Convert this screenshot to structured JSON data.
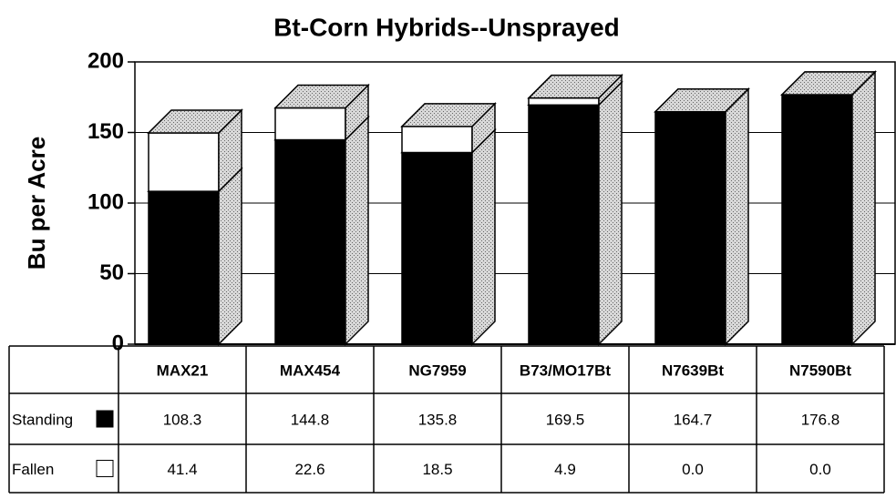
{
  "chart_data": {
    "type": "stacked_bar_3d",
    "title": "Bt-Corn Hybrids--Unsprayed",
    "y_label": "Bu per Acre",
    "categories": [
      "MAX21",
      "MAX454",
      "NG7959",
      "B73/MO17Bt",
      "N7639Bt",
      "N7590Bt"
    ],
    "series": [
      {
        "name": "Standing",
        "color": "#000000",
        "values": [
          108.3,
          144.8,
          135.8,
          169.5,
          164.7,
          176.8
        ],
        "value_labels": [
          "108.3",
          "144.8",
          "135.8",
          "169.5",
          "164.7",
          "176.8"
        ]
      },
      {
        "name": "Fallen",
        "color": "#ffffff",
        "values": [
          41.4,
          22.6,
          18.5,
          4.9,
          0,
          0
        ],
        "value_labels": [
          "41.4",
          "22.6",
          "18.5",
          "4.9",
          "0.0",
          "0.0"
        ]
      }
    ],
    "ylim": [
      0,
      200
    ],
    "yticks": [
      0,
      50,
      100,
      150,
      200
    ],
    "grid": true,
    "data_table": true
  }
}
